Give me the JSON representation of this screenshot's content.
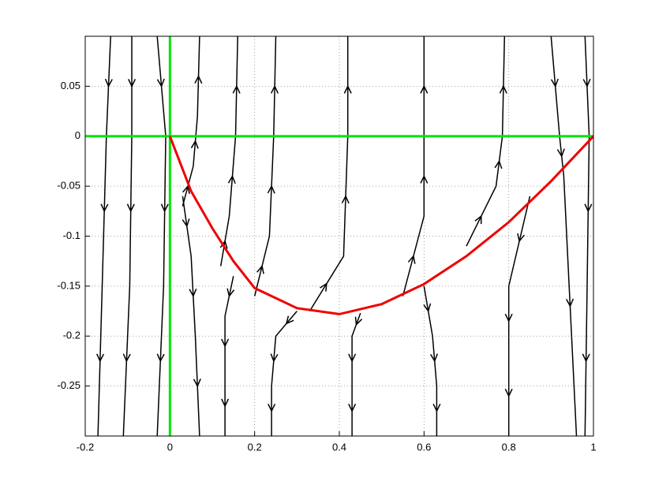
{
  "chart_data": {
    "type": "line",
    "xlim": [
      -0.2,
      1
    ],
    "ylim": [
      -0.3,
      0.1
    ],
    "xticks": [
      -0.2,
      0,
      0.2,
      0.4,
      0.6,
      0.8,
      1
    ],
    "yticks": [
      -0.25,
      -0.2,
      -0.15,
      -0.1,
      -0.05,
      0,
      0.05
    ],
    "grid": true,
    "reference_lines": {
      "color": "#00e600",
      "x": 0,
      "y": 0
    },
    "series": [
      {
        "color": "#000000",
        "arrows": true,
        "x": [
          -0.14,
          -0.15,
          -0.16,
          -0.17
        ],
        "values": [
          0.1,
          0,
          -0.15,
          -0.3
        ]
      },
      {
        "color": "#000000",
        "arrows": true,
        "x": [
          -0.09,
          -0.09,
          -0.095,
          -0.11
        ],
        "values": [
          0.1,
          0,
          -0.15,
          -0.3
        ]
      },
      {
        "color": "#000000",
        "arrows": true,
        "x": [
          -0.03,
          -0.01,
          -0.015,
          -0.03
        ],
        "values": [
          0.1,
          0,
          -0.15,
          -0.3
        ]
      },
      {
        "color": "#000000",
        "arrows": true,
        "x": [
          0.03,
          0.055,
          0.065,
          0.07
        ],
        "values": [
          -0.07,
          -0.03,
          0.02,
          0.1
        ]
      },
      {
        "color": "#000000",
        "arrows": true,
        "x": [
          0.12,
          0.14,
          0.155,
          0.16
        ],
        "values": [
          -0.13,
          -0.08,
          0,
          0.1
        ]
      },
      {
        "color": "#000000",
        "arrows": true,
        "x": [
          0.2,
          0.235,
          0.245,
          0.25
        ],
        "values": [
          -0.16,
          -0.1,
          0,
          0.1
        ]
      },
      {
        "color": "#000000",
        "arrows": true,
        "x": [
          0.33,
          0.41,
          0.42,
          0.42
        ],
        "values": [
          -0.175,
          -0.12,
          0,
          0.1
        ]
      },
      {
        "color": "#000000",
        "arrows": true,
        "x": [
          0.55,
          0.6,
          0.6,
          0.6
        ],
        "values": [
          -0.16,
          -0.08,
          0,
          0.1
        ]
      },
      {
        "color": "#000000",
        "arrows": true,
        "x": [
          0.7,
          0.77,
          0.785,
          0.79
        ],
        "values": [
          -0.11,
          -0.05,
          0,
          0.1
        ]
      },
      {
        "color": "#000000",
        "arrows": true,
        "x": [
          0.9,
          0.92,
          0.93,
          0.96
        ],
        "values": [
          0.1,
          0,
          -0.04,
          -0.3
        ]
      },
      {
        "color": "#000000",
        "arrows": true,
        "x": [
          0.98,
          0.99,
          0.985,
          0.98
        ],
        "values": [
          0.1,
          0,
          -0.15,
          -0.3
        ]
      },
      {
        "color": "#000000",
        "arrows": true,
        "x": [
          0.03,
          0.05,
          0.06,
          0.07
        ],
        "values": [
          -0.06,
          -0.12,
          -0.2,
          -0.3
        ]
      },
      {
        "color": "#000000",
        "arrows": true,
        "x": [
          0.15,
          0.13,
          0.13,
          0.13
        ],
        "values": [
          -0.14,
          -0.18,
          -0.24,
          -0.3
        ]
      },
      {
        "color": "#000000",
        "arrows": true,
        "x": [
          0.3,
          0.25,
          0.24,
          0.24
        ],
        "values": [
          -0.175,
          -0.2,
          -0.25,
          -0.3
        ]
      },
      {
        "color": "#000000",
        "arrows": true,
        "x": [
          0.45,
          0.43,
          0.43,
          0.43
        ],
        "values": [
          -0.177,
          -0.2,
          -0.25,
          -0.3
        ]
      },
      {
        "color": "#000000",
        "arrows": true,
        "x": [
          0.6,
          0.62,
          0.63,
          0.63
        ],
        "values": [
          -0.15,
          -0.2,
          -0.25,
          -0.3
        ]
      },
      {
        "color": "#000000",
        "arrows": true,
        "x": [
          0.85,
          0.8,
          0.8,
          0.8
        ],
        "values": [
          -0.06,
          -0.15,
          -0.22,
          -0.3
        ]
      },
      {
        "color": "#ee0000",
        "arrows": false,
        "x": [
          0,
          0.05,
          0.1,
          0.15,
          0.2,
          0.3,
          0.4,
          0.5,
          0.6,
          0.7,
          0.8,
          0.9,
          1
        ],
        "values": [
          0,
          -0.055,
          -0.092,
          -0.125,
          -0.152,
          -0.172,
          -0.178,
          -0.168,
          -0.148,
          -0.12,
          -0.086,
          -0.045,
          0
        ]
      }
    ]
  }
}
